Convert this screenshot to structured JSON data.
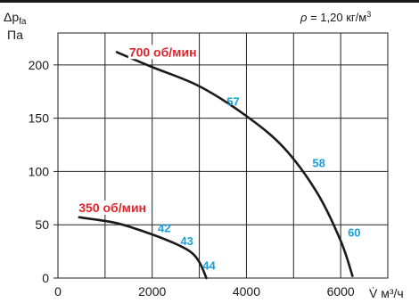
{
  "chart_data": {
    "type": "line",
    "title": "",
    "xlabel": "V̇ м³/ч",
    "ylabel": "Δp_fa Па",
    "ylabel_main": "Δp",
    "ylabel_sub": "fa",
    "ylabel_unit": "Па",
    "xlabel_symbol": "V̇",
    "xlabel_unit": "м³/ч",
    "xlim": [
      0,
      7000
    ],
    "ylim": [
      0,
      230
    ],
    "x_ticks": [
      "0",
      "2000",
      "4000",
      "6000"
    ],
    "x_tick_values": [
      0,
      2000,
      4000,
      6000
    ],
    "y_ticks": [
      "0",
      "50",
      "100",
      "150",
      "200"
    ],
    "y_tick_values": [
      0,
      50,
      100,
      150,
      200
    ],
    "grid": true,
    "density_label": "ρ = 1,20 кг/м³",
    "density_symbol": "ρ",
    "density_value": "= 1,20 кг/м",
    "density_exp": "3",
    "colors": {
      "curve": "#1a1a1a",
      "speed_label": "#e3242b",
      "efficiency_label": "#1aa0dc",
      "grid": "#222222",
      "background": "#ffffff"
    },
    "series": [
      {
        "label": "700 об/мин",
        "x": [
          1250,
          2000,
          3000,
          4000,
          4800,
          5500,
          6000,
          6250
        ],
        "y": [
          212,
          198,
          180,
          152,
          122,
          80,
          35,
          2
        ]
      },
      {
        "label": "350 об/мин",
        "x": [
          450,
          1200,
          1800,
          2400,
          2800,
          3000,
          3150
        ],
        "y": [
          57,
          52,
          44,
          34,
          25,
          15,
          0
        ]
      }
    ],
    "annotations": [
      {
        "text": "57",
        "x": 3580,
        "y": 162
      },
      {
        "text": "58",
        "x": 5400,
        "y": 104
      },
      {
        "text": "60",
        "x": 6150,
        "y": 39
      },
      {
        "text": "42",
        "x": 2120,
        "y": 43
      },
      {
        "text": "43",
        "x": 2600,
        "y": 31
      },
      {
        "text": "44",
        "x": 3070,
        "y": 8
      }
    ],
    "speed_label_positions": [
      {
        "series": 0,
        "x": 1510,
        "y": 208
      },
      {
        "series": 1,
        "x": 440,
        "y": 62
      }
    ]
  }
}
